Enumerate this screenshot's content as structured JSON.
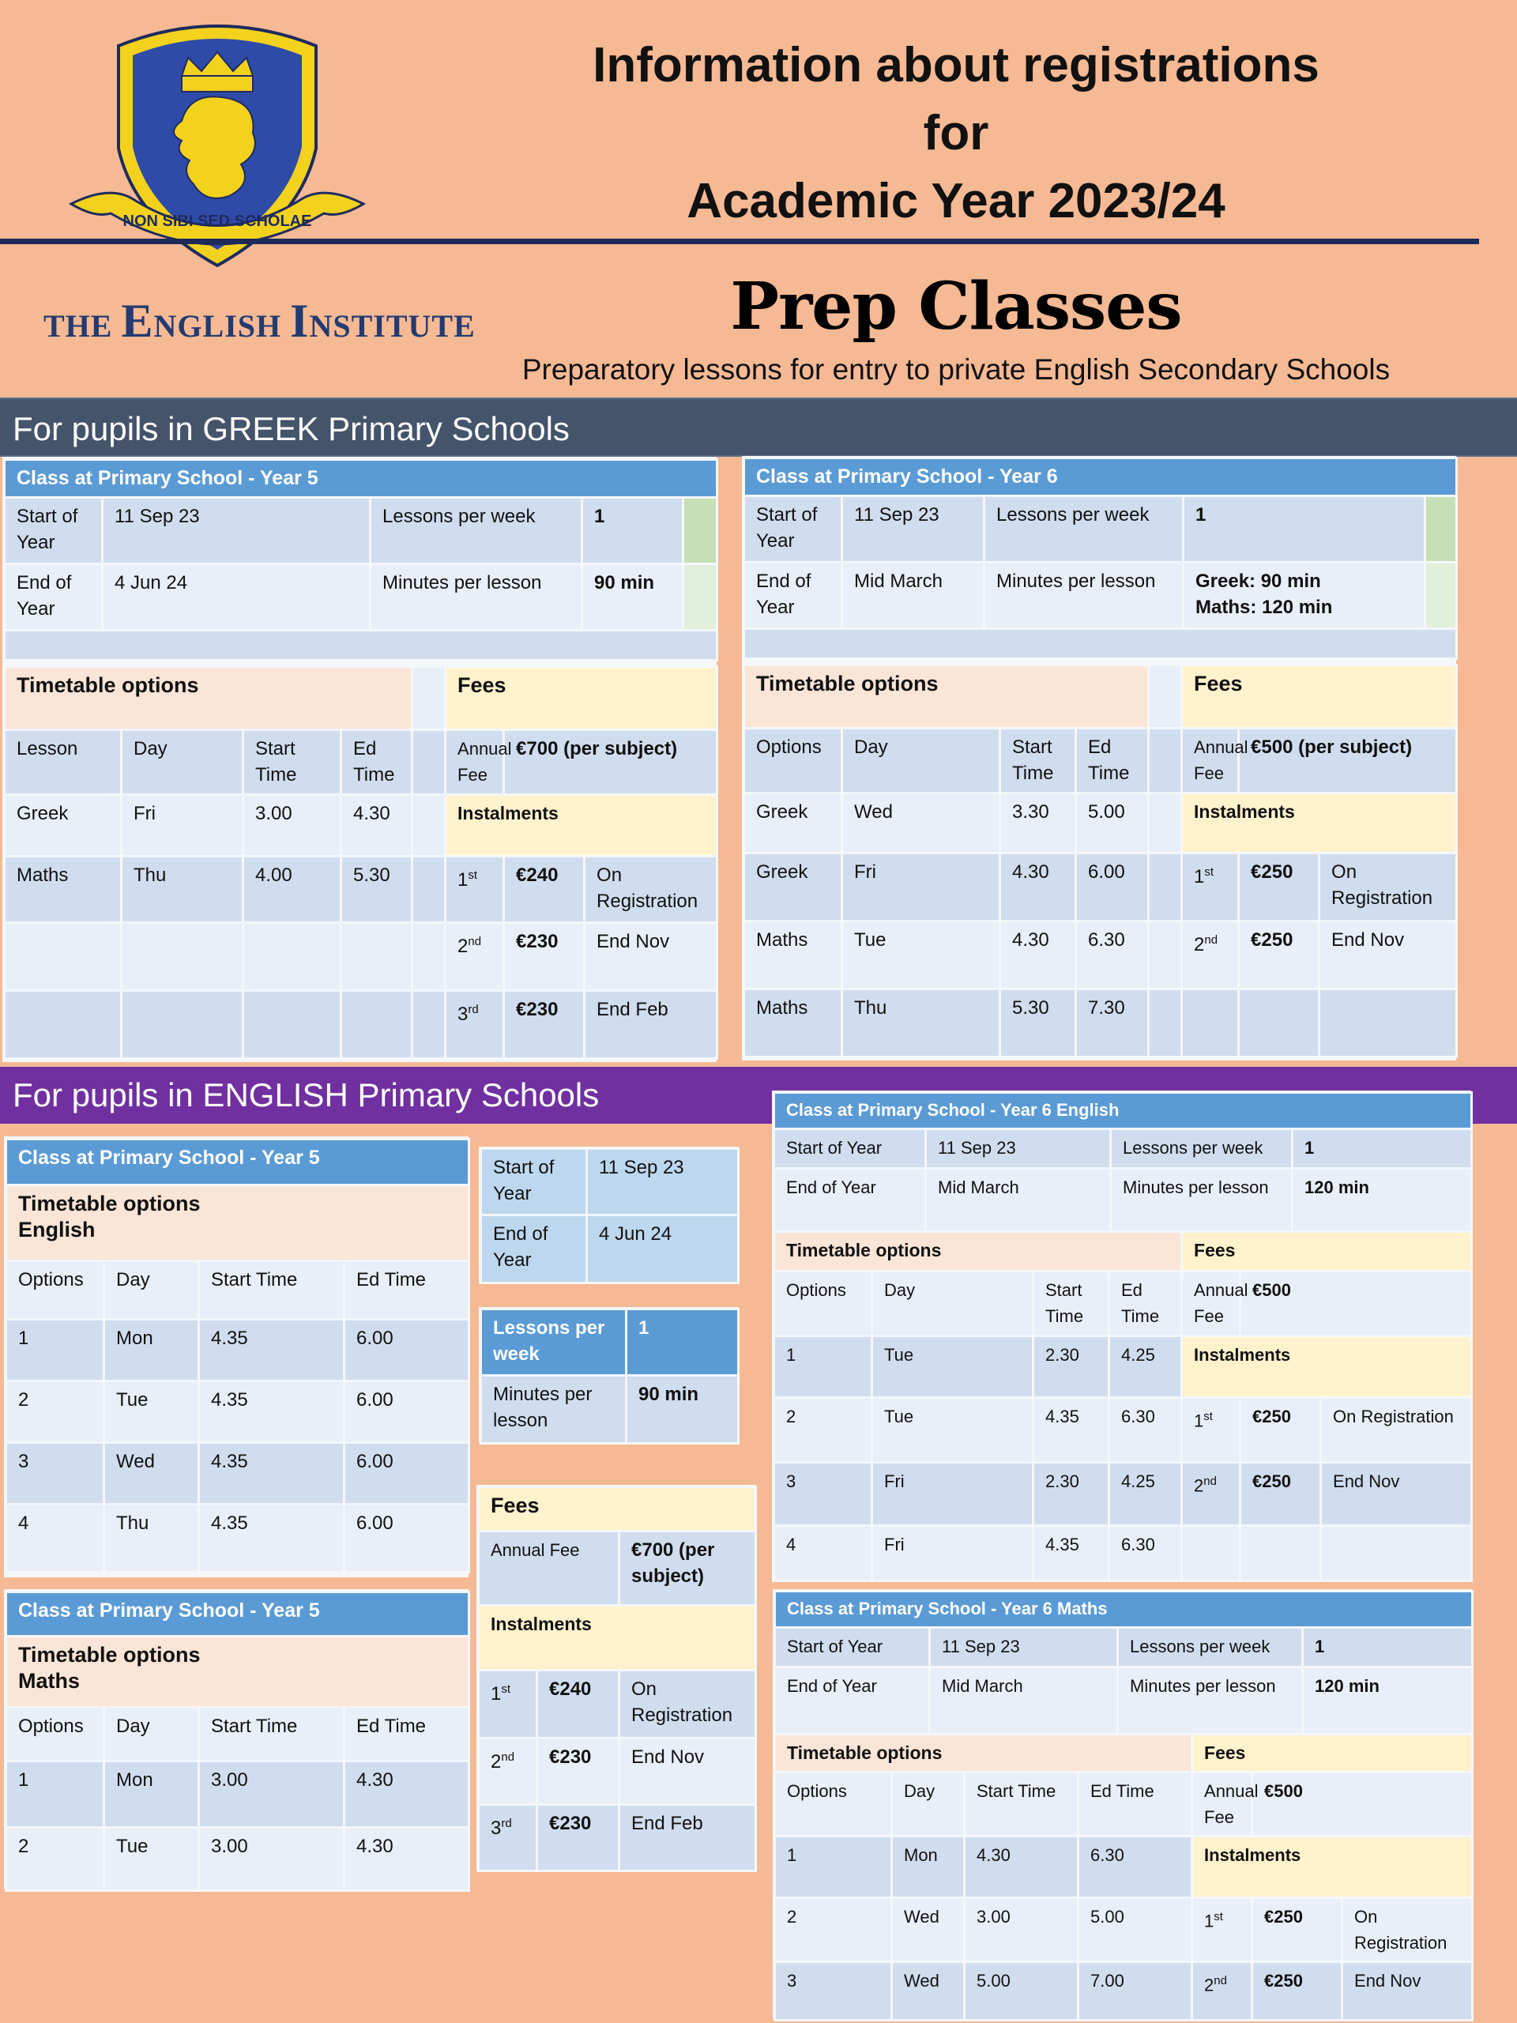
{
  "header": {
    "crest_motto": "NON SIBI SED SCHOLAE",
    "title_line1": "Information about registrations",
    "title_line2": "for",
    "title_line3": "Academic Year 2023/24",
    "institute_the": "THE ",
    "institute_e": "E",
    "institute_nglish": "NGLISH ",
    "institute_i": "I",
    "institute_nstitute": "NSTITUTE",
    "prep_title": "Prep Classes",
    "prep_subtitle": "Preparatory lessons for entry to private English Secondary Schools"
  },
  "greek_band": "For pupils in GREEK Primary Schools",
  "english_band": "For pupils in ENGLISH Primary Schools",
  "greek_y5": {
    "title": "Class at Primary School   - Year 5",
    "start_label": "Start of Year",
    "start_value": "11 Sep 23",
    "lpw_label": "Lessons per week",
    "lpw_value": "1",
    "end_label": "End of Year",
    "end_value": "4 Jun 24",
    "mpl_label": "Minutes per lesson",
    "mpl_value": "90 min",
    "timetable_label": "Timetable options",
    "fees_label": "Fees",
    "cols": [
      "Lesson",
      "Day",
      "Start Time",
      "Ed Time"
    ],
    "rows": [
      [
        "Greek",
        "Fri",
        "3.00",
        "4.30"
      ],
      [
        "Maths",
        "Thu",
        "4.00",
        "5.30"
      ]
    ],
    "annual_fee_label": "Annual Fee",
    "annual_fee_value": "€700 (per subject)",
    "instalments_label": "Instalments",
    "instalments": [
      {
        "n": "1",
        "suf": "st",
        "amt": "€240",
        "when": "On Registration"
      },
      {
        "n": "2",
        "suf": "nd",
        "amt": "€230",
        "when": "End Nov"
      },
      {
        "n": "3",
        "suf": "rd",
        "amt": "€230",
        "when": "End Feb"
      }
    ]
  },
  "greek_y6": {
    "title": "Class at Primary School   - Year 6",
    "start_label": "Start of Year",
    "start_value": "11 Sep 23",
    "lpw_label": "Lessons per week",
    "lpw_value": "1",
    "end_label": "End of Year",
    "end_value": "Mid March",
    "mpl_label": "Minutes per lesson",
    "mpl_value1": "Greek: 90 min",
    "mpl_value2": "Maths: 120 min",
    "timetable_label": "Timetable options",
    "fees_label": "Fees",
    "cols": [
      "Options",
      "Day",
      "Start Time",
      "Ed Time"
    ],
    "rows": [
      [
        "Greek",
        "Wed",
        "3.30",
        "5.00"
      ],
      [
        "Greek",
        "Fri",
        "4.30",
        "6.00"
      ],
      [
        "Maths",
        "Tue",
        "4.30",
        "6.30"
      ],
      [
        "Maths",
        "Thu",
        "5.30",
        "7.30"
      ]
    ],
    "annual_fee_label": "Annual Fee",
    "annual_fee_value": "€500 (per subject)",
    "instalments_label": "Instalments",
    "instalments": [
      {
        "n": "1",
        "suf": "st",
        "amt": "€250",
        "when": "On Registration"
      },
      {
        "n": "2",
        "suf": "nd",
        "amt": "€250",
        "when": "End Nov"
      }
    ]
  },
  "eng_y5_english": {
    "title": "Class at Primary School   - Year 5",
    "timetable_line1": "Timetable options",
    "timetable_line2": "English",
    "cols": [
      "Options",
      "Day",
      "Start Time",
      "Ed Time"
    ],
    "rows": [
      [
        "1",
        "Mon",
        "4.35",
        "6.00"
      ],
      [
        "2",
        "Tue",
        "4.35",
        "6.00"
      ],
      [
        "3",
        "Wed",
        "4.35",
        "6.00"
      ],
      [
        "4",
        "Thu",
        "4.35",
        "6.00"
      ]
    ]
  },
  "eng_y5_maths": {
    "title": "Class at Primary School   - Year 5",
    "timetable_line1": "Timetable options",
    "timetable_line2": "Maths",
    "cols": [
      "Options",
      "Day",
      "Start Time",
      "Ed Time"
    ],
    "rows": [
      [
        "1",
        "Mon",
        "3.00",
        "4.30"
      ],
      [
        "2",
        "Tue",
        "3.00",
        "4.30"
      ]
    ]
  },
  "eng_y5_info": {
    "start_label": "Start of Year",
    "start_value": "11 Sep 23",
    "end_label": "End of Year",
    "end_value": "4 Jun 24",
    "lpw_label": "Lessons per week",
    "lpw_value": "1",
    "mpl_label": "Minutes per lesson",
    "mpl_value": "90 min",
    "fees_label": "Fees",
    "annual_fee_label": "Annual Fee",
    "annual_fee_value": "€700 (per subject)",
    "instalments_label": "Instalments",
    "instalments": [
      {
        "n": "1",
        "suf": "st",
        "amt": "€240",
        "when": "On Registration"
      },
      {
        "n": "2",
        "suf": "nd",
        "amt": "€230",
        "when": "End Nov"
      },
      {
        "n": "3",
        "suf": "rd",
        "amt": "€230",
        "when": "End Feb"
      }
    ]
  },
  "eng_y6_english": {
    "title": "Class at Primary School  - Year 6 English",
    "start_label": "Start of Year",
    "start_value": "11 Sep 23",
    "lpw_label": "Lessons per week",
    "lpw_value": "1",
    "end_label": "End of Year",
    "end_value": "Mid March",
    "mpl_label": "Minutes per lesson",
    "mpl_value": "120 min",
    "timetable_label": "Timetable options",
    "fees_label": "Fees",
    "cols": [
      "Options",
      "Day",
      "Start Time",
      "Ed Time"
    ],
    "rows": [
      [
        "1",
        "Tue",
        "2.30",
        "4.25"
      ],
      [
        "2",
        "Tue",
        "4.35",
        "6.30"
      ],
      [
        "3",
        "Fri",
        "2.30",
        "4.25"
      ],
      [
        "4",
        "Fri",
        "4.35",
        "6.30"
      ]
    ],
    "annual_fee_label": "Annual Fee",
    "annual_fee_value": "€500",
    "instalments_label": "Instalments",
    "instalments": [
      {
        "n": "1",
        "suf": "st",
        "amt": "€250",
        "when": "On Registration"
      },
      {
        "n": "2",
        "suf": "nd",
        "amt": "€250",
        "when": "End Nov"
      }
    ]
  },
  "eng_y6_maths": {
    "title": "Class at Primary School  - Year 6 Maths",
    "start_label": "Start of Year",
    "start_value": "11 Sep 23",
    "lpw_label": "Lessons per week",
    "lpw_value": "1",
    "end_label": "End of Year",
    "end_value": "Mid March",
    "mpl_label": "Minutes per lesson",
    "mpl_value": "120 min",
    "timetable_label": "Timetable options",
    "fees_label": "Fees",
    "cols": [
      "Options",
      "Day",
      "Start Time",
      "Ed Time"
    ],
    "rows": [
      [
        "1",
        "Mon",
        "4.30",
        "6.30"
      ],
      [
        "2",
        "Wed",
        "3.00",
        "5.00"
      ],
      [
        "3",
        "Wed",
        "5.00",
        "7.00"
      ]
    ],
    "annual_fee_label": "Annual Fee",
    "annual_fee_value": "€500",
    "instalments_label": "Instalments",
    "instalments": [
      {
        "n": "1",
        "suf": "st",
        "amt": "€250",
        "when": "On Registration"
      },
      {
        "n": "2",
        "suf": "nd",
        "amt": "€250",
        "when": "End Nov"
      }
    ]
  },
  "colors": {
    "background": "#f5b994",
    "header_blue": "#5b9bd5",
    "greek_band": "#44546a",
    "english_band": "#7030a0",
    "timetable_bg": "#fbe5d6",
    "fees_bg": "#fff2cc"
  }
}
